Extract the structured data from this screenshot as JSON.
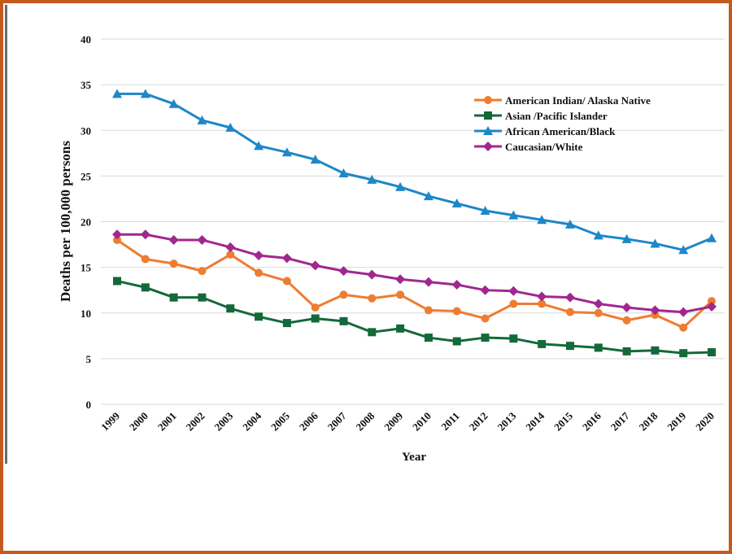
{
  "chart_data": {
    "type": "line",
    "title": "",
    "xlabel": "Year",
    "ylabel": "Deaths per 100,000 persons",
    "ylim": [
      0,
      40
    ],
    "yticks": [
      0,
      5,
      10,
      15,
      20,
      25,
      30,
      35,
      40
    ],
    "grid": "horizontal",
    "legend_position": "top-right",
    "categories": [
      "1999",
      "2000",
      "2001",
      "2002",
      "2003",
      "2004",
      "2005",
      "2006",
      "2007",
      "2008",
      "2009",
      "2010",
      "2011",
      "2012",
      "2013",
      "2014",
      "2015",
      "2016",
      "2017",
      "2018",
      "2019",
      "2020"
    ],
    "series": [
      {
        "name": "American Indian/ Alaska Native",
        "color": "#ed7d31",
        "marker": "circle",
        "values": [
          18.0,
          15.9,
          15.4,
          14.6,
          16.4,
          14.4,
          13.5,
          10.6,
          12.0,
          11.6,
          12.0,
          10.3,
          10.2,
          9.4,
          11.0,
          11.0,
          10.1,
          10.0,
          9.2,
          9.8,
          8.4,
          11.3
        ]
      },
      {
        "name": "Asian /Pacific Islander",
        "color": "#13693a",
        "marker": "square",
        "values": [
          13.5,
          12.8,
          11.7,
          11.7,
          10.5,
          9.6,
          8.9,
          9.4,
          9.1,
          7.9,
          8.3,
          7.3,
          6.9,
          7.3,
          7.2,
          6.6,
          6.4,
          6.2,
          5.8,
          5.9,
          5.6,
          5.7
        ]
      },
      {
        "name": "African American/Black",
        "color": "#1d87c8",
        "marker": "triangle",
        "values": [
          34.0,
          34.0,
          32.9,
          31.1,
          30.3,
          28.3,
          27.6,
          26.8,
          25.3,
          24.6,
          23.8,
          22.8,
          22.0,
          21.2,
          20.7,
          20.2,
          19.7,
          18.5,
          18.1,
          17.6,
          16.9,
          18.2
        ]
      },
      {
        "name": "Caucasian/White",
        "color": "#a1278f",
        "marker": "diamond",
        "values": [
          18.6,
          18.6,
          18.0,
          18.0,
          17.2,
          16.3,
          16.0,
          15.2,
          14.6,
          14.2,
          13.7,
          13.4,
          13.1,
          12.5,
          12.4,
          11.8,
          11.7,
          11.0,
          10.6,
          10.3,
          10.1,
          10.7
        ]
      }
    ]
  }
}
